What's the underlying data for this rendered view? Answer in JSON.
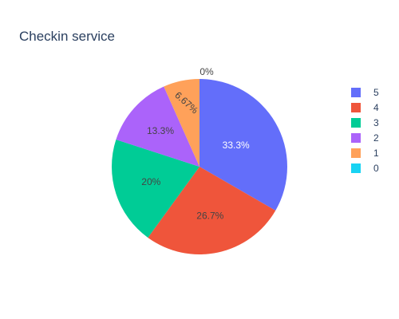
{
  "chart_data": {
    "type": "pie",
    "title": "Checkin service",
    "labels": [
      "5",
      "4",
      "3",
      "2",
      "1",
      "0"
    ],
    "values": [
      5,
      4,
      3,
      2,
      1,
      0
    ],
    "percent_labels": [
      "33.3%",
      "26.7%",
      "20%",
      "13.3%",
      "6.67%",
      "0%"
    ],
    "colors": [
      "#636efa",
      "#EF553B",
      "#00cc96",
      "#ab63fa",
      "#FFA15A",
      "#19d3f3"
    ],
    "legend": {
      "position": "right",
      "entries": [
        "5",
        "4",
        "3",
        "2",
        "1",
        "0"
      ]
    }
  }
}
